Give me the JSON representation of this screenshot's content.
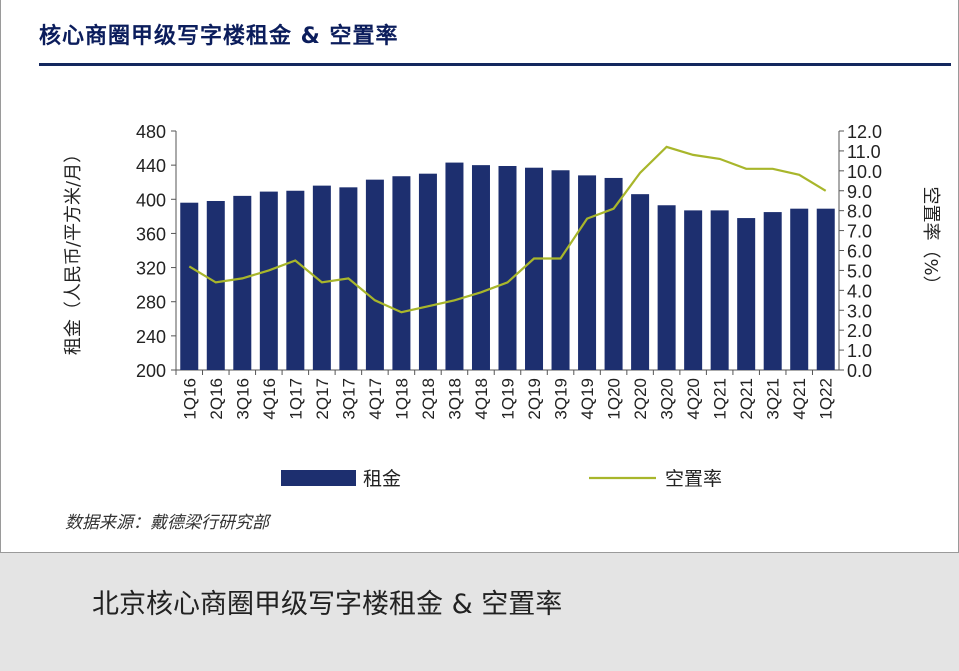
{
  "header": {
    "title": "核心商圈甲级写字楼租金 & 空置率"
  },
  "source": "数据来源：戴德梁行研究部",
  "caption": "北京核心商圈甲级写字楼租金 & 空置率",
  "colors": {
    "bar": "#1d2f6f",
    "line": "#a8b62b",
    "title": "#0b1d5c",
    "rule": "#13275e"
  },
  "chart_data": {
    "type": "bar",
    "categories": [
      "1Q16",
      "2Q16",
      "3Q16",
      "4Q16",
      "1Q17",
      "2Q17",
      "3Q17",
      "4Q17",
      "1Q18",
      "2Q18",
      "3Q18",
      "4Q18",
      "1Q19",
      "2Q19",
      "3Q19",
      "4Q19",
      "1Q20",
      "2Q20",
      "3Q20",
      "4Q20",
      "1Q21",
      "2Q21",
      "3Q21",
      "4Q21",
      "1Q22"
    ],
    "series": [
      {
        "name": "租金",
        "type": "bar",
        "axis": "left",
        "values": [
          396,
          398,
          404,
          409,
          410,
          416,
          414,
          423,
          427,
          430,
          443,
          440,
          439,
          437,
          434,
          428,
          425,
          406,
          393,
          387,
          387,
          378,
          385,
          389,
          389
        ]
      },
      {
        "name": "空置率",
        "type": "line",
        "axis": "right",
        "values": [
          5.2,
          4.4,
          4.6,
          5.0,
          5.5,
          4.4,
          4.6,
          3.5,
          2.9,
          3.2,
          3.5,
          3.9,
          4.4,
          5.6,
          5.6,
          7.6,
          8.1,
          9.9,
          11.2,
          10.8,
          10.6,
          10.1,
          10.1,
          9.8,
          9.0
        ]
      }
    ],
    "ylabel": "租金（人民币/平方米/月）",
    "y2label": "空置率（%）",
    "ylim": [
      200,
      480
    ],
    "yticks": [
      "200",
      "240",
      "280",
      "320",
      "360",
      "400",
      "440",
      "480"
    ],
    "y2lim": [
      0,
      12
    ],
    "y2ticks": [
      "0.0",
      "1.0",
      "2.0",
      "3.0",
      "4.0",
      "5.0",
      "6.0",
      "7.0",
      "8.0",
      "9.0",
      "10.0",
      "11.0",
      "12.0"
    ],
    "legend": [
      "租金",
      "空置率"
    ],
    "legend_position": "bottom",
    "grid": false
  }
}
